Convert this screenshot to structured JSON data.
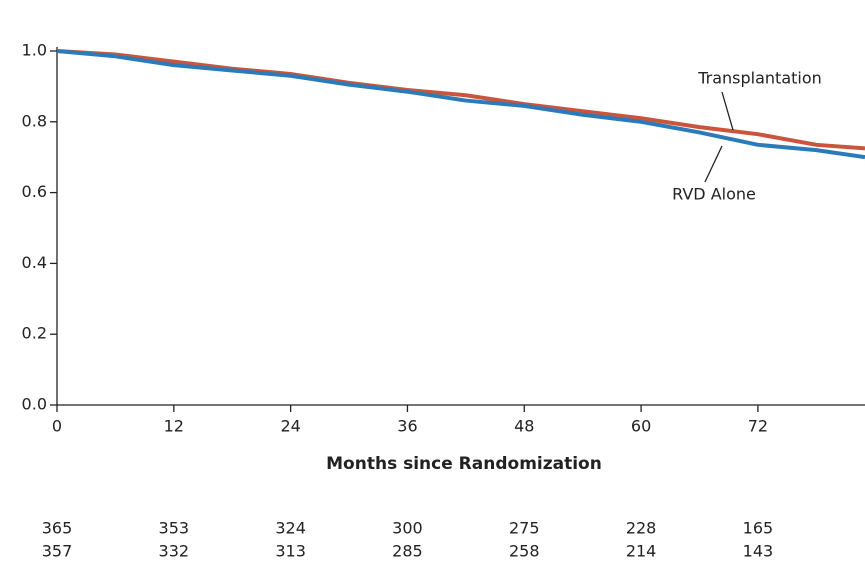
{
  "chart_data": {
    "type": "line",
    "x_label": "Months since Randomization",
    "x": [
      0,
      6,
      12,
      18,
      24,
      30,
      36,
      42,
      48,
      54,
      60,
      66,
      72,
      78,
      83
    ],
    "series": [
      {
        "name": "Transplantation",
        "color": "#c9563c",
        "values": [
          1.0,
          0.99,
          0.97,
          0.95,
          0.935,
          0.91,
          0.89,
          0.875,
          0.85,
          0.83,
          0.81,
          0.785,
          0.765,
          0.735,
          0.725
        ]
      },
      {
        "name": "RVD Alone",
        "color": "#2b7bba",
        "values": [
          1.0,
          0.985,
          0.96,
          0.945,
          0.93,
          0.905,
          0.885,
          0.86,
          0.845,
          0.82,
          0.8,
          0.77,
          0.735,
          0.72,
          0.7
        ]
      }
    ],
    "xlim": [
      0,
      83
    ],
    "xticks": [
      0,
      12,
      24,
      36,
      48,
      60,
      72
    ],
    "ylim": [
      0,
      1
    ],
    "yticks": [
      {
        "value": 0,
        "label": "0.0"
      },
      0.2,
      0.4,
      0.6,
      0.8,
      {
        "value": 1,
        "label": "1.0"
      }
    ],
    "number_at_risk": [
      [
        365,
        353,
        324,
        300,
        275,
        228,
        165
      ],
      [
        357,
        332,
        313,
        285,
        258,
        214,
        143
      ]
    ]
  }
}
